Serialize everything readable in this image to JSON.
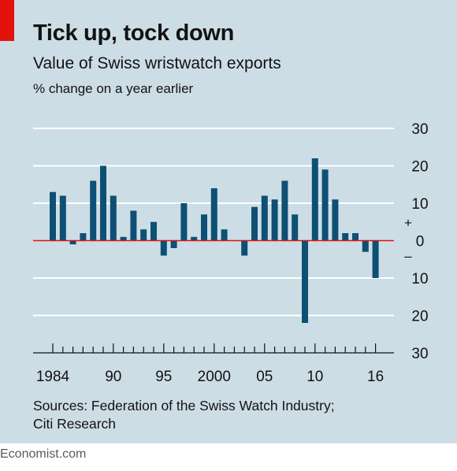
{
  "title": "Tick up, tock down",
  "subtitle": "Value of Swiss wristwatch exports",
  "unit_label": "% change on a year earlier",
  "source_line1": "Sources: Federation of the Swiss Watch Industry;",
  "source_line2": "Citi Research",
  "footer": "Economist.com",
  "colors": {
    "bar": "#0d5074",
    "zero_line": "#e3120b",
    "background": "#cddde6",
    "accent": "#e3120b"
  },
  "chart_data": {
    "type": "bar",
    "title": "Tick up, tock down",
    "subtitle": "Value of Swiss wristwatch exports",
    "ylabel": "% change on a year earlier",
    "xlabel": "",
    "ylim": [
      -30,
      30
    ],
    "y_ticks": [
      30,
      20,
      10,
      0,
      -10,
      -20,
      -30
    ],
    "y_tick_labels": [
      "30",
      "20",
      "10",
      "0",
      "10",
      "20",
      "30"
    ],
    "y_sign_labels": [
      "+",
      "–"
    ],
    "x_tick_labels": [
      {
        "year": 1984,
        "label": "1984"
      },
      {
        "year": 1990,
        "label": "90"
      },
      {
        "year": 1995,
        "label": "95"
      },
      {
        "year": 2000,
        "label": "2000"
      },
      {
        "year": 2005,
        "label": "05"
      },
      {
        "year": 2010,
        "label": "10"
      },
      {
        "year": 2016,
        "label": "16"
      }
    ],
    "grid": true,
    "categories": [
      1984,
      1985,
      1986,
      1987,
      1988,
      1989,
      1990,
      1991,
      1992,
      1993,
      1994,
      1995,
      1996,
      1997,
      1998,
      1999,
      2000,
      2001,
      2002,
      2003,
      2004,
      2005,
      2006,
      2007,
      2008,
      2009,
      2010,
      2011,
      2012,
      2013,
      2014,
      2015,
      2016
    ],
    "values": [
      13,
      12,
      -1,
      2,
      16,
      20,
      12,
      1,
      8,
      3,
      5,
      -4,
      -2,
      10,
      1,
      7,
      14,
      3,
      0,
      -4,
      9,
      12,
      11,
      16,
      7,
      -22,
      22,
      19,
      11,
      2,
      2,
      -3,
      -10
    ]
  }
}
